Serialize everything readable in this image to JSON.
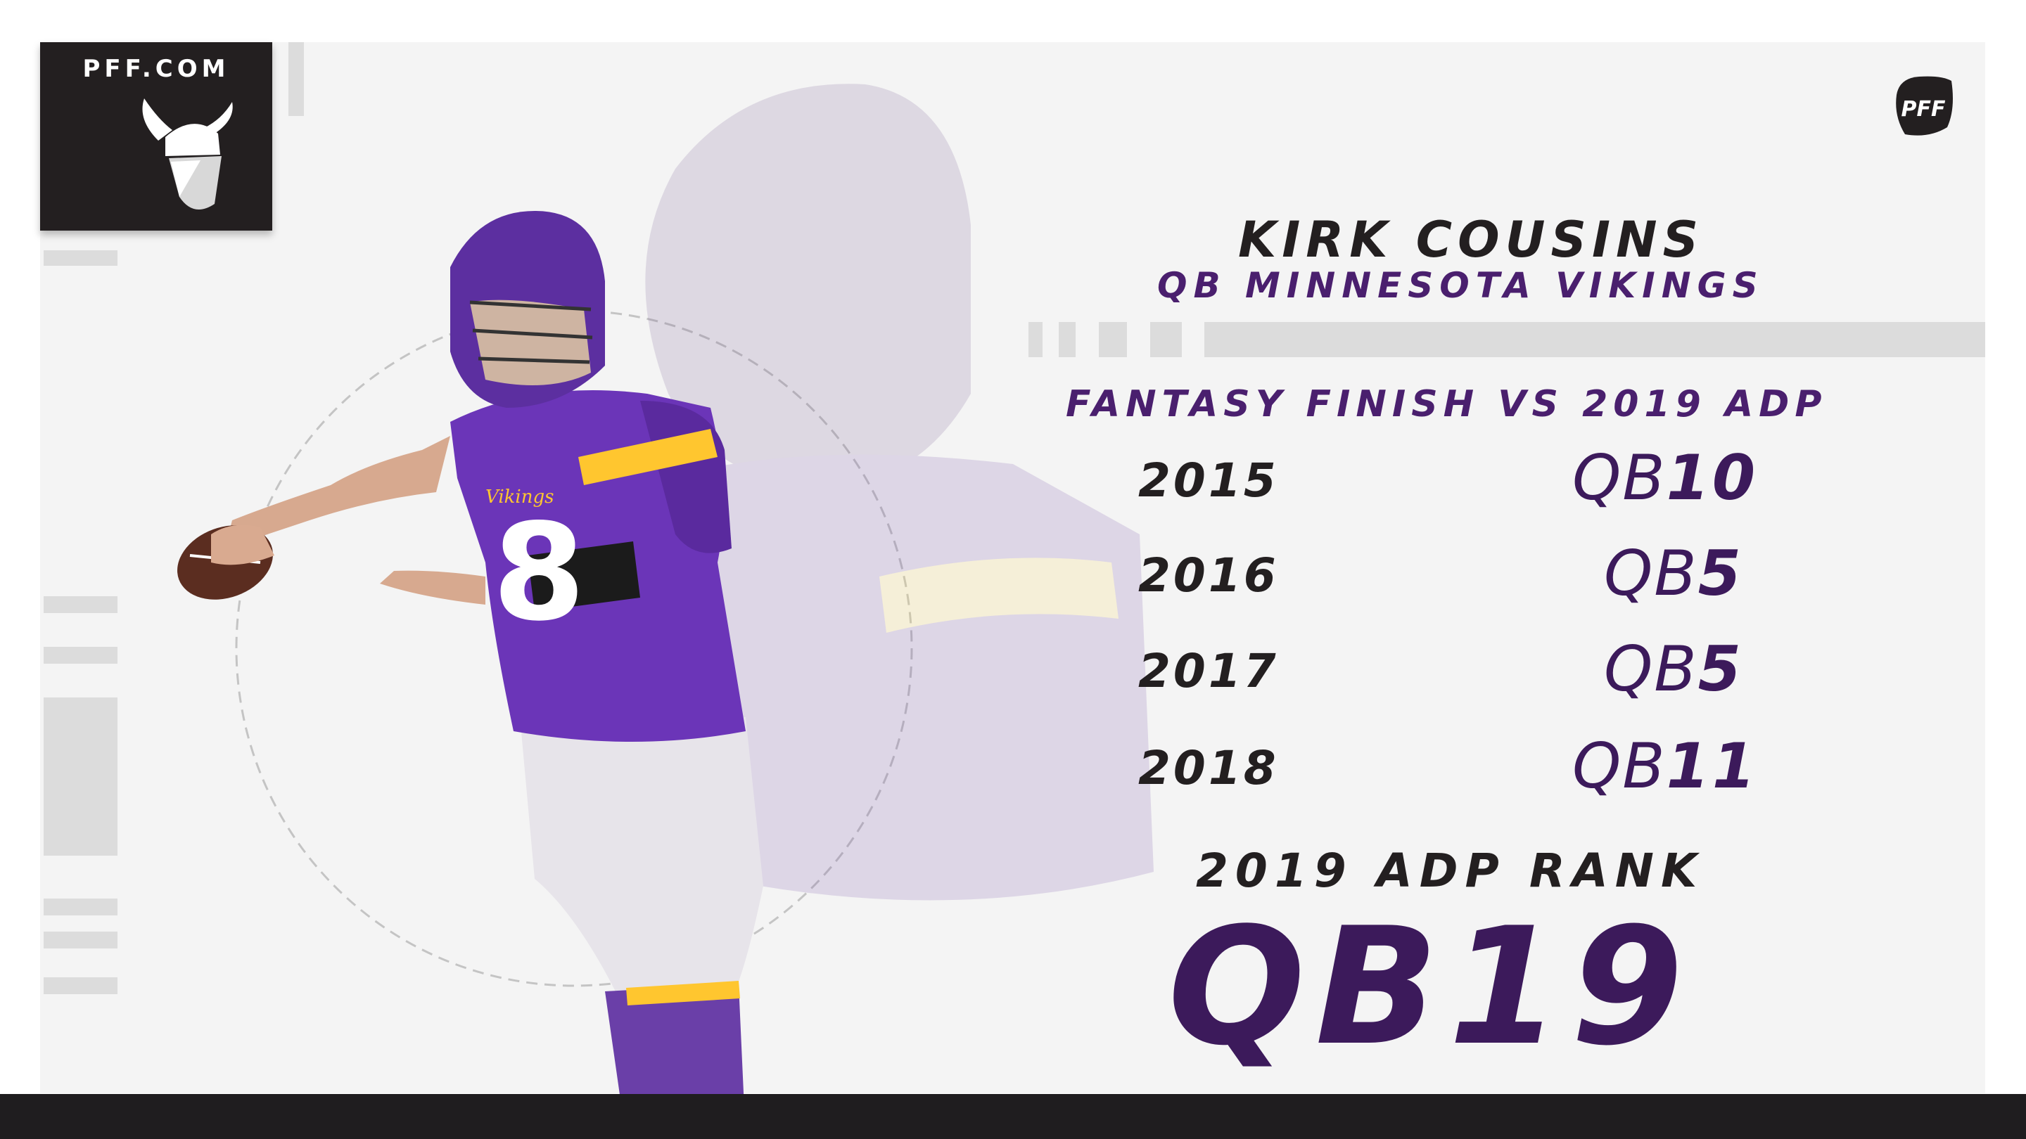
{
  "brand": {
    "site": "PFF.COM",
    "badge_text": "PFF"
  },
  "player": {
    "name": "KIRK COUSINS",
    "subtitle": "QB MINNESOTA VIKINGS"
  },
  "finish": {
    "title": "FANTASY FINISH VS 2019 ADP",
    "rows": [
      {
        "year": "2015",
        "prefix": "QB",
        "rank": "10"
      },
      {
        "year": "2016",
        "prefix": "QB",
        "rank": "5"
      },
      {
        "year": "2017",
        "prefix": "QB",
        "rank": "5"
      },
      {
        "year": "2018",
        "prefix": "QB",
        "rank": "11"
      }
    ]
  },
  "adp": {
    "label": "2019 ADP RANK",
    "value": "QB19"
  },
  "jersey": {
    "number": "8",
    "wordmark": "Vikings"
  },
  "colors": {
    "purple": "#4f2683",
    "gold": "#ffc62f",
    "dark": "#231f20"
  },
  "icons": {
    "team_logo": "vikings-head-icon",
    "badge": "pff-badge-icon",
    "player": "player-illustration"
  }
}
